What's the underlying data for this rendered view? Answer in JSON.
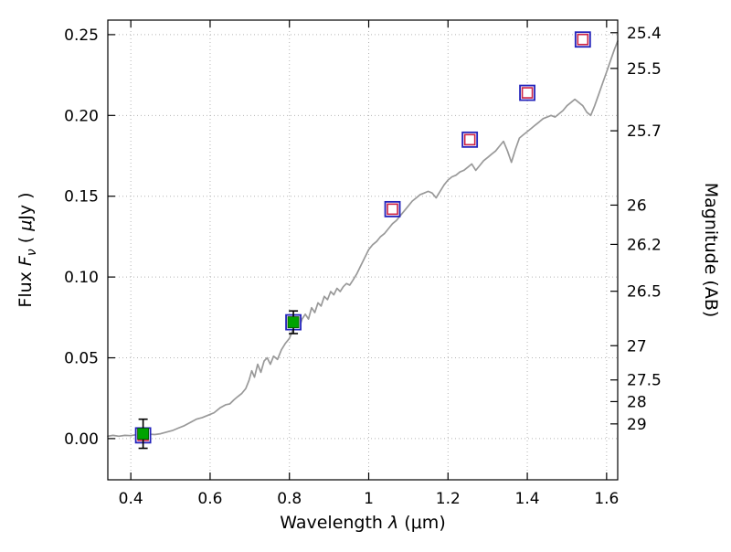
{
  "figure": {
    "background": "#ffffff"
  },
  "chart_data": {
    "type": "line",
    "title": "",
    "xlabel": {
      "prefix": "Wavelength  ",
      "symbol": "λ",
      "suffix": "  (μm)"
    },
    "ylabel_left": {
      "prefix": "Flux  ",
      "symbol": "F",
      "subscript": "ν",
      "suffix_open": "  ( ",
      "unit_symbol": "μ",
      "suffix_close": "Jy )"
    },
    "ylabel_right": "Magnitude (AB)",
    "xlim": [
      0.342,
      1.628
    ],
    "ylim": [
      -0.0255,
      0.259
    ],
    "grid": true,
    "x_ticks": [
      0.4,
      0.6,
      0.8,
      1.0,
      1.2,
      1.4,
      1.6
    ],
    "x_tick_labels": [
      "0.4",
      "0.6",
      "0.8",
      "1",
      "1.2",
      "1.4",
      "1.6"
    ],
    "y_ticks": [
      0.0,
      0.05,
      0.1,
      0.15,
      0.2,
      0.25
    ],
    "y_tick_labels": [
      "0.00",
      "0.05",
      "0.10",
      "0.15",
      "0.20",
      "0.25"
    ],
    "right_axis_ticks": [
      {
        "label": "25.4",
        "flux": 0.2512
      },
      {
        "label": "25.5",
        "flux": 0.2291
      },
      {
        "label": "25.7",
        "flux": 0.1905
      },
      {
        "label": "26",
        "flux": 0.1445
      },
      {
        "label": "26.2",
        "flux": 0.1202
      },
      {
        "label": "26.5",
        "flux": 0.0912
      },
      {
        "label": "27",
        "flux": 0.0575
      },
      {
        "label": "27.5",
        "flux": 0.0363
      },
      {
        "label": "28",
        "flux": 0.0229
      },
      {
        "label": "29",
        "flux": 0.0091
      }
    ],
    "colors": {
      "spectrum": "#999999",
      "grid": "#b5b5b5",
      "marker_outer": "#2222bb",
      "marker_inner": "#cc2244",
      "observed_fill": "#00a300",
      "observed_edge": "#005500",
      "errorbar": "#000000",
      "axis": "#000000"
    },
    "series": [
      {
        "name": "model-spectrum",
        "type": "line",
        "x": [
          0.342,
          0.355,
          0.37,
          0.385,
          0.4,
          0.415,
          0.43,
          0.445,
          0.46,
          0.475,
          0.49,
          0.505,
          0.52,
          0.535,
          0.55,
          0.565,
          0.58,
          0.595,
          0.61,
          0.625,
          0.64,
          0.65,
          0.66,
          0.67,
          0.68,
          0.69,
          0.698,
          0.705,
          0.712,
          0.72,
          0.728,
          0.736,
          0.744,
          0.752,
          0.76,
          0.77,
          0.78,
          0.79,
          0.8,
          0.808,
          0.816,
          0.824,
          0.832,
          0.84,
          0.848,
          0.856,
          0.864,
          0.872,
          0.88,
          0.888,
          0.896,
          0.904,
          0.912,
          0.92,
          0.928,
          0.936,
          0.944,
          0.952,
          0.96,
          0.97,
          0.98,
          0.99,
          1.0,
          1.01,
          1.02,
          1.03,
          1.04,
          1.05,
          1.06,
          1.07,
          1.08,
          1.09,
          1.1,
          1.11,
          1.12,
          1.13,
          1.14,
          1.15,
          1.16,
          1.17,
          1.18,
          1.19,
          1.2,
          1.21,
          1.22,
          1.23,
          1.24,
          1.25,
          1.26,
          1.27,
          1.28,
          1.29,
          1.3,
          1.31,
          1.32,
          1.33,
          1.34,
          1.35,
          1.36,
          1.37,
          1.38,
          1.39,
          1.4,
          1.41,
          1.42,
          1.43,
          1.44,
          1.45,
          1.46,
          1.47,
          1.48,
          1.49,
          1.5,
          1.51,
          1.52,
          1.53,
          1.54,
          1.55,
          1.56,
          1.57,
          1.58,
          1.59,
          1.6,
          1.61,
          1.62,
          1.628
        ],
        "y": [
          0.0015,
          0.002,
          0.0015,
          0.002,
          0.0018,
          0.0025,
          0.002,
          0.0028,
          0.0025,
          0.003,
          0.004,
          0.005,
          0.0065,
          0.008,
          0.01,
          0.012,
          0.013,
          0.0145,
          0.016,
          0.019,
          0.021,
          0.0215,
          0.024,
          0.026,
          0.028,
          0.031,
          0.036,
          0.042,
          0.038,
          0.046,
          0.041,
          0.048,
          0.05,
          0.046,
          0.051,
          0.049,
          0.055,
          0.059,
          0.062,
          0.067,
          0.071,
          0.068,
          0.074,
          0.077,
          0.074,
          0.081,
          0.078,
          0.084,
          0.082,
          0.088,
          0.086,
          0.091,
          0.089,
          0.093,
          0.091,
          0.094,
          0.096,
          0.095,
          0.098,
          0.102,
          0.107,
          0.112,
          0.117,
          0.12,
          0.122,
          0.125,
          0.127,
          0.13,
          0.133,
          0.135,
          0.138,
          0.141,
          0.144,
          0.147,
          0.149,
          0.151,
          0.152,
          0.153,
          0.152,
          0.149,
          0.153,
          0.157,
          0.16,
          0.162,
          0.163,
          0.165,
          0.166,
          0.168,
          0.17,
          0.166,
          0.169,
          0.172,
          0.174,
          0.176,
          0.178,
          0.181,
          0.184,
          0.178,
          0.171,
          0.179,
          0.186,
          0.188,
          0.19,
          0.192,
          0.194,
          0.196,
          0.198,
          0.199,
          0.2,
          0.199,
          0.201,
          0.203,
          0.206,
          0.208,
          0.21,
          0.208,
          0.206,
          0.202,
          0.2,
          0.206,
          0.213,
          0.22,
          0.227,
          0.234,
          0.241,
          0.246
        ]
      },
      {
        "name": "model-photometry",
        "type": "scatter-open-square",
        "points": [
          {
            "x": 0.431,
            "y": 0.002
          },
          {
            "x": 0.81,
            "y": 0.072
          },
          {
            "x": 1.06,
            "y": 0.142
          },
          {
            "x": 1.255,
            "y": 0.185
          },
          {
            "x": 1.4,
            "y": 0.214
          },
          {
            "x": 1.54,
            "y": 0.247
          }
        ]
      },
      {
        "name": "observed-photometry",
        "type": "scatter-filled-square-errorbar",
        "points": [
          {
            "x": 0.431,
            "y": 0.003,
            "yerr": 0.009
          },
          {
            "x": 0.81,
            "y": 0.072,
            "yerr": 0.007
          }
        ]
      }
    ]
  }
}
